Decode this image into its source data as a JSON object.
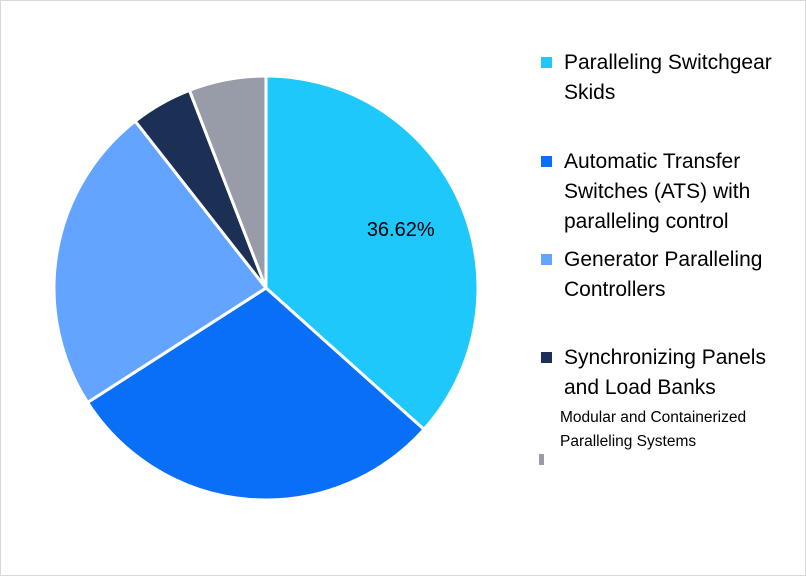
{
  "chart_data": {
    "type": "pie",
    "title": "",
    "legend_placement": "right",
    "slices": [
      {
        "label": "Paralleling Switchgear Skids",
        "value": 36.62,
        "color": "#1ec8fb",
        "show_label": true
      },
      {
        "label": "Automatic Transfer Switches (ATS) with paralleling control",
        "value": 29.3,
        "color": "#0a6ff7",
        "show_label": false
      },
      {
        "label": "Generator Paralleling Controllers",
        "value": 23.5,
        "color": "#62a4ff",
        "show_label": false
      },
      {
        "label": "Synchronizing Panels and Load Banks",
        "value": 4.7,
        "color": "#1c2f55",
        "show_label": false
      },
      {
        "label": "Modular and Containerized Paralleling Systems",
        "value": 5.88,
        "color": "#979ca8",
        "show_label": false
      }
    ],
    "data_labels": [
      "36.62%"
    ]
  }
}
